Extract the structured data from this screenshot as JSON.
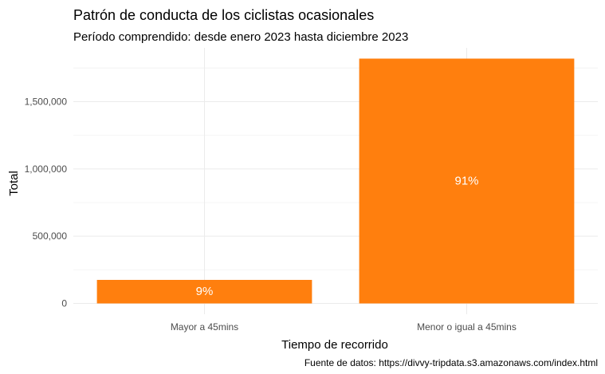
{
  "chart_data": {
    "type": "bar",
    "title": "Patrón de conducta de los ciclistas ocasionales",
    "subtitle": "Período comprendido: desde enero 2023 hasta diciembre 2023",
    "xlabel": "Tiempo de recorrido",
    "ylabel": "Total",
    "caption": "Fuente de datos: https://divvy-tripdata.s3.amazonaws.com/index.html",
    "categories": [
      "Mayor a 45mins",
      "Menor o igual a 45mins"
    ],
    "values": [
      175000,
      1820000
    ],
    "data_labels": [
      "9%",
      "91%"
    ],
    "bar_color": "#ff7f0e",
    "ylim": [
      -80000,
      1900000
    ],
    "y_ticks": [
      0,
      500000,
      1000000,
      1500000
    ],
    "y_tick_labels": [
      "0",
      "500,000",
      "1,000,000",
      "1,500,000"
    ],
    "grid": true,
    "legend": "none"
  }
}
